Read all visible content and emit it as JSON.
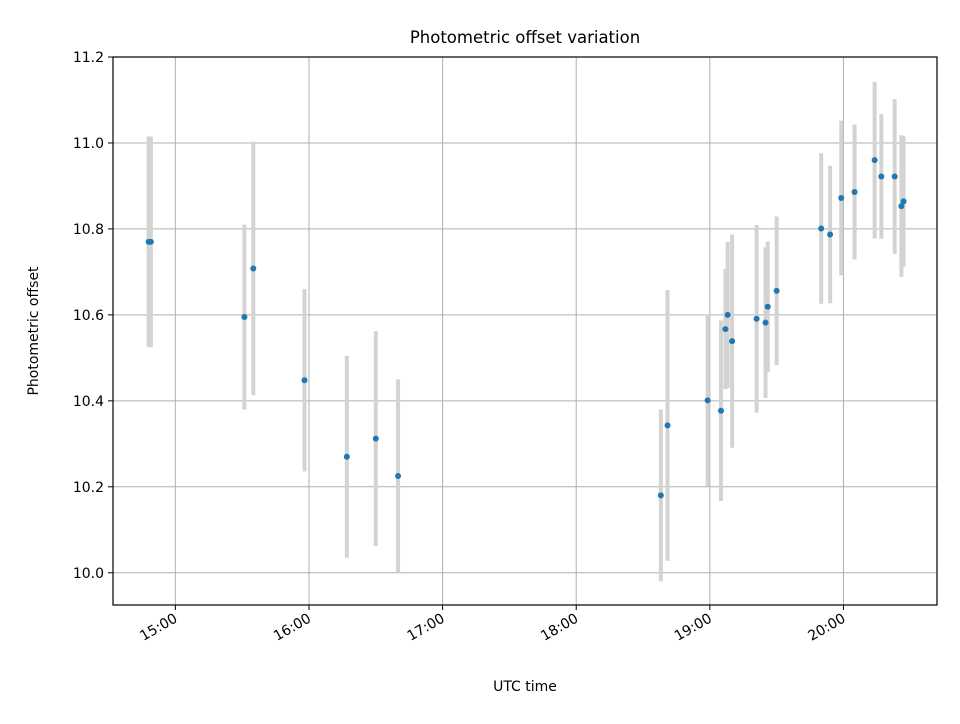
{
  "chart_data": {
    "type": "scatter",
    "title": "Photometric offset variation",
    "xlabel": "UTC time",
    "ylabel": "Photometric offset",
    "x_type": "time",
    "xlim": [
      "14:32",
      "20:42"
    ],
    "ylim": [
      9.925,
      11.2
    ],
    "xticks": [
      "15:00",
      "16:00",
      "17:00",
      "18:00",
      "19:00",
      "20:00"
    ],
    "yticks": [
      "10.0",
      "10.2",
      "10.4",
      "10.6",
      "10.8",
      "11.0",
      "11.2"
    ],
    "grid": true,
    "colors": {
      "point": "#1f77b4",
      "errorbar": "#d3d3d3",
      "grid": "#b0b0b0"
    },
    "points": [
      {
        "x": "14:48",
        "y": 10.77,
        "yerr": 0.245
      },
      {
        "x": "14:49",
        "y": 10.77,
        "yerr": 0.245
      },
      {
        "x": "15:31",
        "y": 10.595,
        "yerr": 0.215
      },
      {
        "x": "15:35",
        "y": 10.708,
        "yerr": 0.295
      },
      {
        "x": "15:58",
        "y": 10.448,
        "yerr": 0.212
      },
      {
        "x": "16:17",
        "y": 10.27,
        "yerr": 0.235
      },
      {
        "x": "16:30",
        "y": 10.312,
        "yerr": 0.25
      },
      {
        "x": "16:40",
        "y": 10.225,
        "yerr": 0.225
      },
      {
        "x": "18:38",
        "y": 10.18,
        "yerr": 0.2
      },
      {
        "x": "18:41",
        "y": 10.343,
        "yerr": 0.315
      },
      {
        "x": "18:59",
        "y": 10.401,
        "yerr": 0.2
      },
      {
        "x": "19:05",
        "y": 10.377,
        "yerr": 0.21
      },
      {
        "x": "19:07",
        "y": 10.567,
        "yerr": 0.14
      },
      {
        "x": "19:08",
        "y": 10.6,
        "yerr": 0.17
      },
      {
        "x": "19:10",
        "y": 10.539,
        "yerr": 0.248
      },
      {
        "x": "19:21",
        "y": 10.591,
        "yerr": 0.218
      },
      {
        "x": "19:25",
        "y": 10.582,
        "yerr": 0.175
      },
      {
        "x": "19:26",
        "y": 10.619,
        "yerr": 0.152
      },
      {
        "x": "19:30",
        "y": 10.656,
        "yerr": 0.173
      },
      {
        "x": "19:50",
        "y": 10.801,
        "yerr": 0.175
      },
      {
        "x": "19:54",
        "y": 10.787,
        "yerr": 0.16
      },
      {
        "x": "19:59",
        "y": 10.872,
        "yerr": 0.18
      },
      {
        "x": "20:05",
        "y": 10.886,
        "yerr": 0.157
      },
      {
        "x": "20:14",
        "y": 10.96,
        "yerr": 0.182
      },
      {
        "x": "20:17",
        "y": 10.922,
        "yerr": 0.145
      },
      {
        "x": "20:23",
        "y": 10.922,
        "yerr": 0.18
      },
      {
        "x": "20:26",
        "y": 10.853,
        "yerr": 0.165
      },
      {
        "x": "20:27",
        "y": 10.864,
        "yerr": 0.152
      }
    ]
  }
}
